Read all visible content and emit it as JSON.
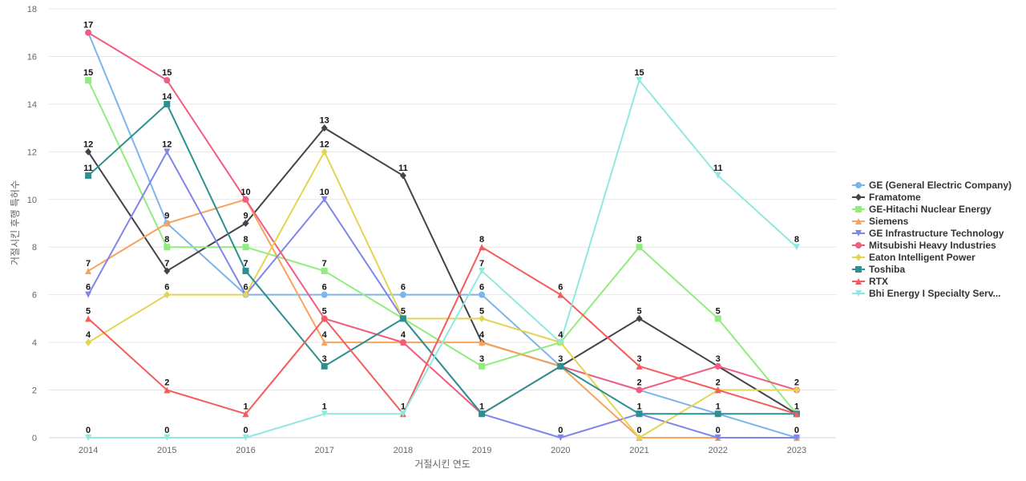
{
  "chart_data": {
    "type": "line",
    "title": "",
    "xlabel": "거절시킨 연도",
    "ylabel": "거절시킨 후행 특허수",
    "x": [
      "2014",
      "2015",
      "2016",
      "2017",
      "2018",
      "2019",
      "2020",
      "2021",
      "2022",
      "2023"
    ],
    "ylim": [
      0,
      18
    ],
    "yticks": [
      0,
      2,
      4,
      6,
      8,
      10,
      12,
      14,
      16,
      18
    ],
    "grid": true,
    "legend_position": "right",
    "series": [
      {
        "name": "GE (General Electric Company)",
        "color": "#7cb5ec",
        "marker": "circle",
        "values": [
          17,
          9,
          6,
          6,
          6,
          6,
          3,
          2,
          1,
          0
        ]
      },
      {
        "name": "Framatome",
        "color": "#434348",
        "marker": "diamond",
        "values": [
          12,
          7,
          9,
          13,
          11,
          4,
          3,
          5,
          3,
          1
        ]
      },
      {
        "name": "GE-Hitachi Nuclear Energy",
        "color": "#90ed7d",
        "marker": "square",
        "values": [
          15,
          8,
          8,
          7,
          5,
          3,
          4,
          8,
          5,
          1
        ]
      },
      {
        "name": "Siemens",
        "color": "#f7a35c",
        "marker": "triangle",
        "values": [
          7,
          9,
          10,
          4,
          4,
          4,
          3,
          0,
          0,
          0
        ]
      },
      {
        "name": "GE Infrastructure Technology",
        "color": "#8085e9",
        "marker": "triangle-down",
        "values": [
          6,
          12,
          6,
          10,
          5,
          1,
          0,
          1,
          0,
          0
        ]
      },
      {
        "name": "Mitsubishi Heavy Industries",
        "color": "#f15c80",
        "marker": "circle",
        "values": [
          17,
          15,
          10,
          5,
          4,
          1,
          3,
          2,
          3,
          2
        ]
      },
      {
        "name": "Eaton Intelligent Power",
        "color": "#e4d354",
        "marker": "diamond",
        "values": [
          4,
          6,
          6,
          12,
          5,
          5,
          4,
          0,
          2,
          2
        ]
      },
      {
        "name": "Toshiba",
        "color": "#2b908f",
        "marker": "square",
        "values": [
          11,
          14,
          7,
          3,
          5,
          1,
          3,
          1,
          1,
          1
        ]
      },
      {
        "name": "RTX",
        "color": "#f45b5b",
        "marker": "triangle",
        "values": [
          5,
          2,
          1,
          5,
          1,
          8,
          6,
          3,
          2,
          1
        ]
      },
      {
        "name": "Bhi Energy I Specialty Serv...",
        "color": "#91e8e1",
        "marker": "triangle-down",
        "values": [
          0,
          0,
          0,
          1,
          1,
          7,
          4,
          15,
          11,
          8
        ]
      }
    ]
  }
}
